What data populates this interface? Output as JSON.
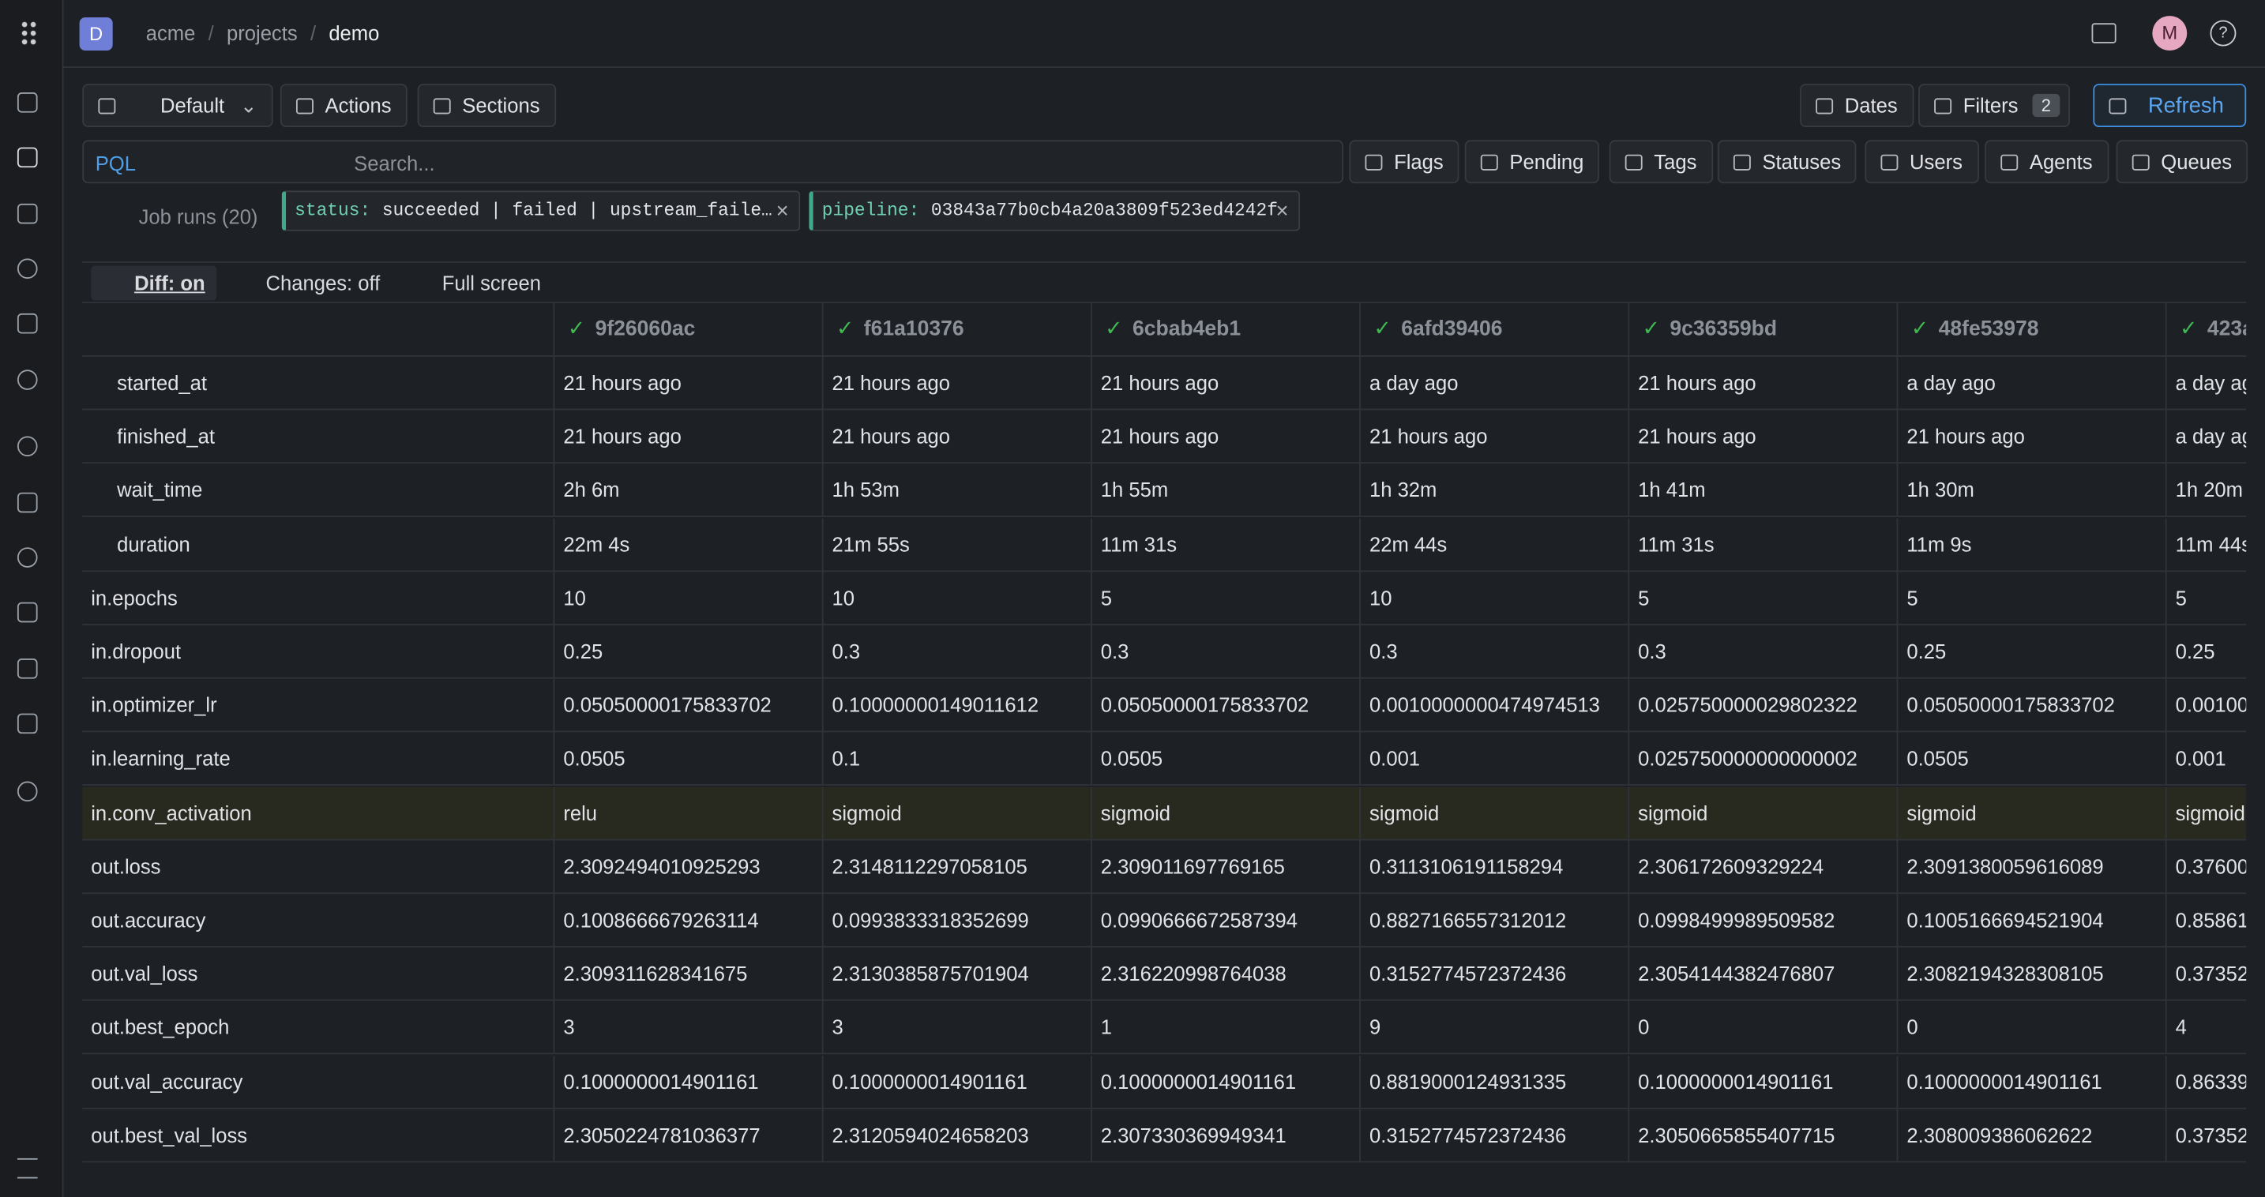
{
  "breadcrumb": {
    "workspace": "D",
    "items": [
      "acme",
      "projects",
      "demo"
    ]
  },
  "avatar": "M",
  "toolbar": {
    "view": "Default",
    "actions": "Actions",
    "sections": "Sections",
    "dates": "Dates",
    "filters": "Filters",
    "filter_count": 2,
    "refresh": "Refresh"
  },
  "search": {
    "mode": "PQL",
    "placeholder": "Search...",
    "buttons": [
      "Flags",
      "Pending",
      "Tags",
      "Statuses",
      "Users",
      "Agents",
      "Queues"
    ]
  },
  "filters": {
    "label": "Job runs (20)",
    "chips": [
      {
        "key": "status:",
        "value": "succeeded | failed | upstream_faile…"
      },
      {
        "key": "pipeline:",
        "value": "03843a77b0cb4a20a3809f523ed4242f"
      }
    ]
  },
  "table_toolbar": {
    "diff": "Diff: on",
    "changes": "Changes: off",
    "fullscreen": "Full screen"
  },
  "table": {
    "columns": [
      "9f26060ac",
      "f61a10376",
      "6cbab4eb1",
      "6afd39406",
      "9c36359bd",
      "48fe53978",
      "423a"
    ],
    "rows": [
      {
        "label": "started_at",
        "cells": [
          "21 hours ago",
          "21 hours ago",
          "21 hours ago",
          "a day ago",
          "21 hours ago",
          "a day ago",
          "a day ag"
        ]
      },
      {
        "label": "finished_at",
        "cells": [
          "21 hours ago",
          "21 hours ago",
          "21 hours ago",
          "21 hours ago",
          "21 hours ago",
          "21 hours ago",
          "a day ag"
        ]
      },
      {
        "label": "wait_time",
        "cells": [
          "2h 6m",
          "1h 53m",
          "1h 55m",
          "1h 32m",
          "1h 41m",
          "1h 30m",
          "1h 20m"
        ]
      },
      {
        "label": "duration",
        "cells": [
          "22m 4s",
          "21m 55s",
          "11m 31s",
          "22m 44s",
          "11m 31s",
          "11m 9s",
          "11m 44s"
        ]
      },
      {
        "label": "in.epochs",
        "cells": [
          "10",
          "10",
          "5",
          "10",
          "5",
          "5",
          "5"
        ]
      },
      {
        "label": "in.dropout",
        "cells": [
          "0.25",
          "0.3",
          "0.3",
          "0.3",
          "0.3",
          "0.25",
          "0.25"
        ]
      },
      {
        "label": "in.optimizer_lr",
        "cells": [
          "0.05050000175833702",
          "0.10000000149011612",
          "0.05050000175833702",
          "0.0010000000474974513",
          "0.025750000029802322",
          "0.05050000175833702",
          "0.00100"
        ]
      },
      {
        "label": "in.learning_rate",
        "cells": [
          "0.0505",
          "0.1",
          "0.0505",
          "0.001",
          "0.025750000000000002",
          "0.0505",
          "0.001"
        ]
      },
      {
        "label": "in.conv_activation",
        "cells": [
          "relu",
          "sigmoid",
          "sigmoid",
          "sigmoid",
          "sigmoid",
          "sigmoid",
          "sigmoid"
        ]
      },
      {
        "label": "out.loss",
        "cells": [
          "2.3092494010925293",
          "2.3148112297058105",
          "2.309011697769165",
          "0.3113106191158294",
          "2.306172609329224",
          "2.3091380059616089",
          "0.37600"
        ]
      },
      {
        "label": "out.accuracy",
        "cells": [
          "0.1008666679263114",
          "0.0993833318352699",
          "0.0990666672587394",
          "0.8827166557312012",
          "0.0998499989509582",
          "0.1005166694521904",
          "0.85861"
        ]
      },
      {
        "label": "out.val_loss",
        "cells": [
          "2.309311628341675",
          "2.3130385875701904",
          "2.316220998764038",
          "0.3152774572372436",
          "2.3054144382476807",
          "2.3082194328308105",
          "0.37352"
        ]
      },
      {
        "label": "out.best_epoch",
        "cells": [
          "3",
          "3",
          "1",
          "9",
          "0",
          "0",
          "4"
        ]
      },
      {
        "label": "out.val_accuracy",
        "cells": [
          "0.1000000014901161",
          "0.1000000014901161",
          "0.1000000014901161",
          "0.8819000124931335",
          "0.1000000014901161",
          "0.1000000014901161",
          "0.86339"
        ]
      },
      {
        "label": "out.best_val_loss",
        "cells": [
          "2.3050224781036377",
          "2.3120594024658203",
          "2.307330369949341",
          "0.3152774572372436",
          "2.3050665855407715",
          "2.308009386062622",
          "0.37352"
        ]
      }
    ]
  }
}
